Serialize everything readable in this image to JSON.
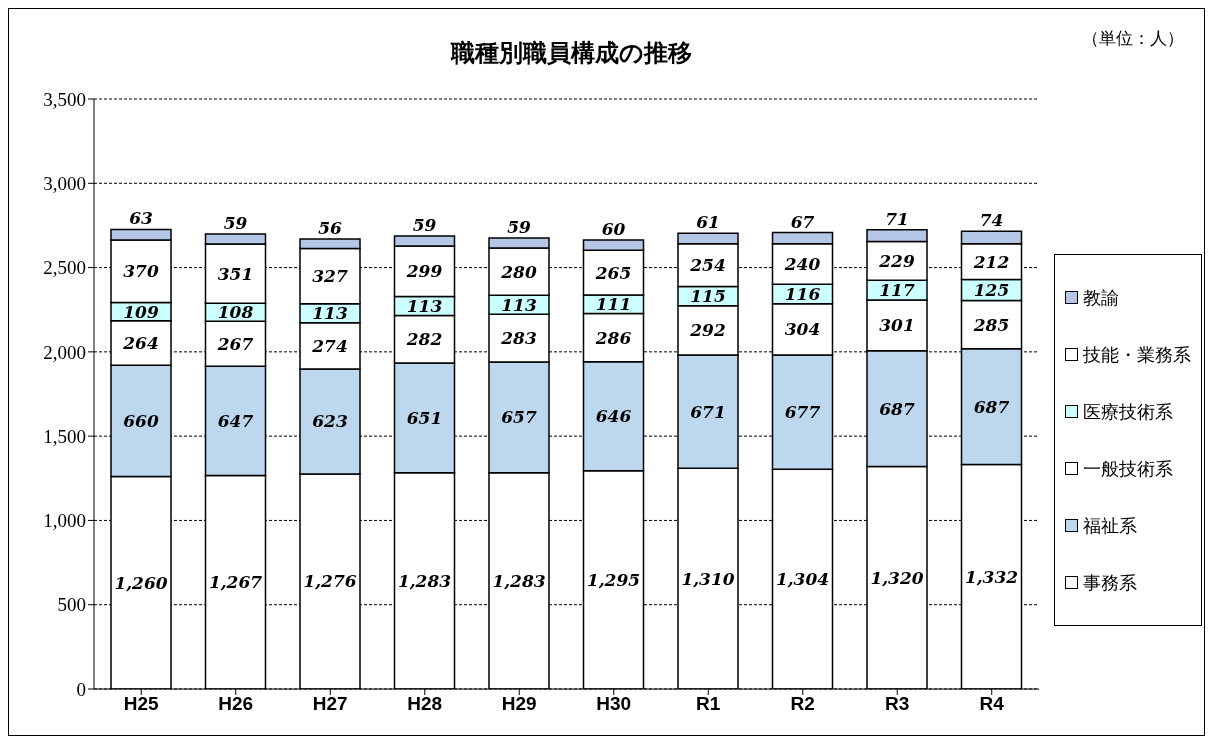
{
  "chart_data": {
    "type": "bar",
    "title": "職種別職員構成の推移",
    "annotations": [
      "（単位：人）"
    ],
    "categories": [
      "H25",
      "H26",
      "H27",
      "H28",
      "H29",
      "H30",
      "R1",
      "R2",
      "R3",
      "R4"
    ],
    "stacked": true,
    "series": [
      {
        "name": "事務系",
        "color": "#ffffff",
        "values": [
          1260,
          1267,
          1276,
          1283,
          1283,
          1295,
          1310,
          1304,
          1320,
          1332
        ],
        "value_labels": [
          "1,260",
          "1,267",
          "1,276",
          "1,283",
          "1,283",
          "1,295",
          "1,310",
          "1,304",
          "1,320",
          "1,332"
        ]
      },
      {
        "name": "福祉系",
        "color": "#bdd7ee",
        "values": [
          660,
          647,
          623,
          651,
          657,
          646,
          671,
          677,
          687,
          687
        ]
      },
      {
        "name": "一般技術系",
        "color": "#ffffff",
        "values": [
          264,
          267,
          274,
          282,
          283,
          286,
          292,
          304,
          301,
          285
        ]
      },
      {
        "name": "医療技術系",
        "color": "#ccffff",
        "values": [
          109,
          108,
          113,
          113,
          113,
          111,
          115,
          116,
          117,
          125
        ]
      },
      {
        "name": "技能・業務系",
        "color": "#ffffff",
        "values": [
          370,
          351,
          327,
          299,
          280,
          265,
          254,
          240,
          229,
          212
        ]
      },
      {
        "name": "教諭",
        "color": "#b4c7e7",
        "values": [
          63,
          59,
          56,
          59,
          59,
          60,
          61,
          67,
          71,
          74
        ]
      }
    ],
    "ylim": [
      0,
      3500
    ],
    "yticks": [
      {
        "value": 0,
        "label": "0"
      },
      {
        "value": 500,
        "label": "500"
      },
      {
        "value": 1000,
        "label": "1,000"
      },
      {
        "value": 1500,
        "label": "1,500"
      },
      {
        "value": 2000,
        "label": "2,000"
      },
      {
        "value": 2500,
        "label": "2,500"
      },
      {
        "value": 3000,
        "label": "3,000"
      },
      {
        "value": 3500,
        "label": "3,500"
      }
    ],
    "grid": "y",
    "legend": "right",
    "data_labels": true
  }
}
